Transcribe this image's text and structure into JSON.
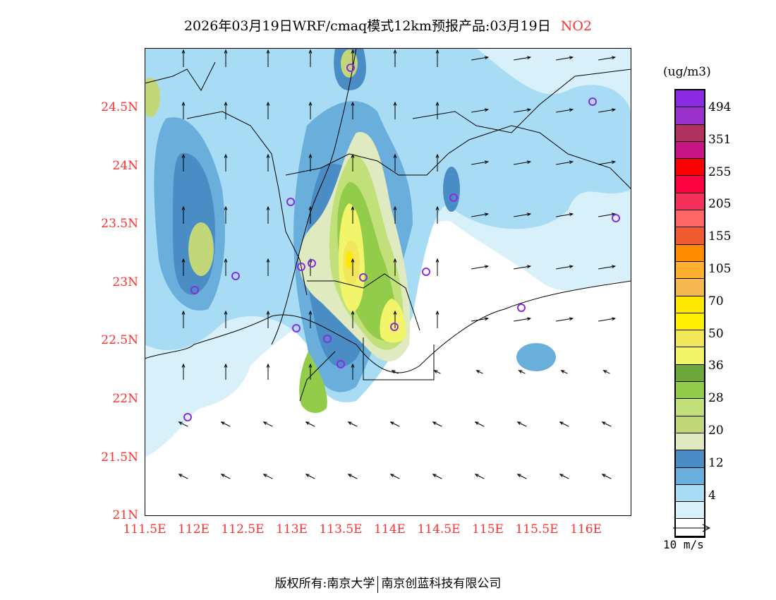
{
  "title": {
    "text": "2026年03月19日WRF/cmaq模式12km预报产品:03月19日",
    "pollutant": "NO2"
  },
  "axes": {
    "lat_ticks": [
      "24.5N",
      "24N",
      "23.5N",
      "23N",
      "22.5N",
      "22N",
      "21.5N",
      "21N"
    ],
    "lon_ticks": [
      "111.5E",
      "112E",
      "112.5E",
      "113E",
      "113.5E",
      "114E",
      "114.5E",
      "115E",
      "115.5E",
      "116E"
    ]
  },
  "legend": {
    "unit": "(ug/m3)",
    "colors": [
      "#8a2be2",
      "#9932cc",
      "#b03060",
      "#c71585",
      "#ff0000",
      "#ff0040",
      "#f5305a",
      "#ff6666",
      "#f05a30",
      "#ff8c00",
      "#ffb030",
      "#f5b850",
      "#ffe800",
      "#fff000",
      "#f2e65a",
      "#f2f56a",
      "#6ea83a",
      "#92cc4a",
      "#c2e07a",
      "#c2d67a",
      "#dfeac0",
      "#4a8dc4",
      "#6aaedc",
      "#a8dcf4",
      "#d8f0fa",
      "#ffffff"
    ],
    "labels": [
      "494",
      "351",
      "255",
      "205",
      "155",
      "105",
      "70",
      "50",
      "36",
      "28",
      "20",
      "12",
      "4"
    ],
    "reference_vector": "10 m/s"
  },
  "footer": {
    "left": "版权所有:南京大学",
    "right": "南京创蓝科技有限公司"
  },
  "colors": {
    "station": "#8a2be2",
    "tick": "#ff3030"
  }
}
